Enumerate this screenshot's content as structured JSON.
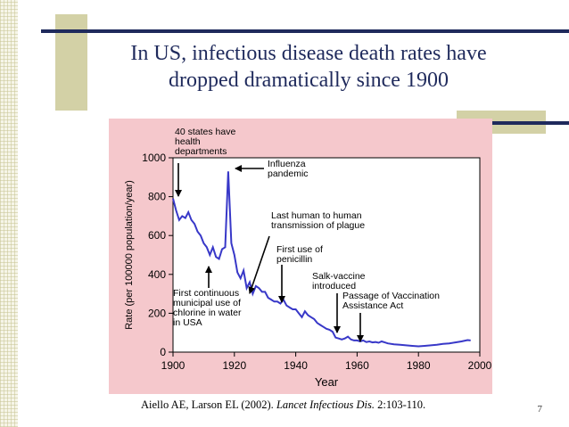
{
  "slide": {
    "title_line1": "In US, infectious disease death rates have",
    "title_line2": "dropped dramatically since 1900",
    "citation": {
      "authors": "Aiello AE, Larson EL (2002).",
      "journal": "Lancet Infectious Dis.",
      "details": "2:103-110."
    },
    "page_number": "7"
  },
  "colors": {
    "line": "#3838c8",
    "frame": "#f5c8cc",
    "title": "#1f2a5c"
  },
  "chart_data": {
    "type": "line",
    "title": "",
    "xlabel": "Year",
    "ylabel": "Rate (per 100000 population/year)",
    "xlim": [
      1900,
      2000
    ],
    "ylim": [
      0,
      1000
    ],
    "x_ticks": [
      1900,
      1920,
      1940,
      1960,
      1980,
      2000
    ],
    "y_ticks": [
      0,
      200,
      400,
      600,
      800,
      1000
    ],
    "grid": false,
    "series": [
      {
        "x": [
          1900,
          1901,
          1902,
          1903,
          1904,
          1905,
          1906,
          1907,
          1908,
          1909,
          1910,
          1911,
          1912,
          1913,
          1914,
          1915,
          1916,
          1917,
          1918,
          1919,
          1920,
          1921,
          1922,
          1923,
          1924,
          1925,
          1926,
          1927,
          1928,
          1929,
          1930,
          1931,
          1932,
          1933,
          1934,
          1935,
          1936,
          1937,
          1938,
          1939,
          1940,
          1941,
          1942,
          1943,
          1944,
          1945,
          1946,
          1947,
          1948,
          1949,
          1950,
          1951,
          1952,
          1953,
          1954,
          1955,
          1956,
          1957,
          1958,
          1959,
          1960,
          1961,
          1962,
          1963,
          1964,
          1965,
          1966,
          1967,
          1968,
          1969,
          1970,
          1972,
          1974,
          1976,
          1978,
          1980,
          1982,
          1984,
          1986,
          1988,
          1990,
          1992,
          1994,
          1996,
          1997
        ],
        "values": [
          790,
          730,
          680,
          700,
          690,
          720,
          680,
          660,
          620,
          600,
          560,
          540,
          500,
          540,
          490,
          480,
          530,
          540,
          930,
          560,
          500,
          410,
          380,
          420,
          330,
          360,
          300,
          340,
          330,
          310,
          310,
          280,
          270,
          260,
          260,
          250,
          270,
          240,
          230,
          220,
          220,
          200,
          180,
          210,
          190,
          180,
          170,
          150,
          140,
          130,
          120,
          115,
          105,
          75,
          70,
          65,
          70,
          80,
          65,
          60,
          60,
          55,
          60,
          52,
          55,
          50,
          52,
          48,
          55,
          50,
          45,
          40,
          38,
          35,
          32,
          30,
          32,
          35,
          38,
          42,
          45,
          50,
          55,
          62,
          60
        ]
      }
    ],
    "annotations": [
      {
        "text": [
          "40 states have",
          "health",
          "departments"
        ],
        "x": 1900
      },
      {
        "text": [
          "Influenza",
          "pandemic"
        ],
        "x": 1918
      },
      {
        "text": [
          "Last human to human",
          "transmission of plague"
        ],
        "x": 1925
      },
      {
        "text": [
          "First continuous",
          "municipal use of",
          "chlorine in water",
          "in USA"
        ],
        "x": 1908
      },
      {
        "text": [
          "First use of",
          "penicillin"
        ],
        "x": 1942
      },
      {
        "text": [
          "Salk-vaccine",
          "introduced"
        ],
        "x": 1955
      },
      {
        "text": [
          "Passage of Vaccination",
          "Assistance Act"
        ],
        "x": 1962
      }
    ]
  }
}
